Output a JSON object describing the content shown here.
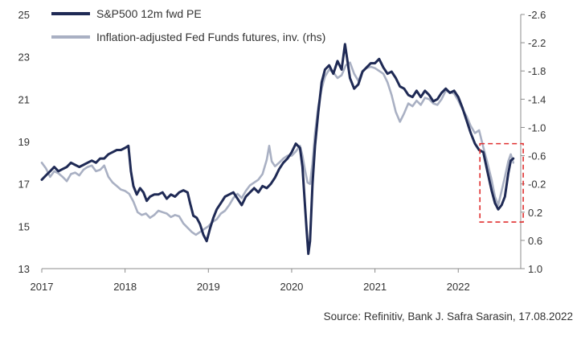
{
  "chart_data": {
    "type": "line",
    "series": [
      {
        "name": "S&P500 12m fwd PE",
        "color": "#1f2a55",
        "axis": "left",
        "points": [
          [
            2017.0,
            17.2
          ],
          [
            2017.05,
            17.4
          ],
          [
            2017.1,
            17.6
          ],
          [
            2017.15,
            17.8
          ],
          [
            2017.2,
            17.6
          ],
          [
            2017.25,
            17.7
          ],
          [
            2017.3,
            17.8
          ],
          [
            2017.35,
            18.0
          ],
          [
            2017.4,
            17.9
          ],
          [
            2017.45,
            17.8
          ],
          [
            2017.5,
            17.9
          ],
          [
            2017.55,
            18.0
          ],
          [
            2017.6,
            18.1
          ],
          [
            2017.65,
            18.0
          ],
          [
            2017.7,
            18.2
          ],
          [
            2017.75,
            18.2
          ],
          [
            2017.8,
            18.4
          ],
          [
            2017.85,
            18.5
          ],
          [
            2017.9,
            18.6
          ],
          [
            2017.95,
            18.6
          ],
          [
            2018.0,
            18.7
          ],
          [
            2018.04,
            18.8
          ],
          [
            2018.07,
            17.6
          ],
          [
            2018.1,
            16.9
          ],
          [
            2018.14,
            16.5
          ],
          [
            2018.18,
            16.8
          ],
          [
            2018.22,
            16.6
          ],
          [
            2018.26,
            16.2
          ],
          [
            2018.3,
            16.4
          ],
          [
            2018.35,
            16.5
          ],
          [
            2018.4,
            16.5
          ],
          [
            2018.45,
            16.6
          ],
          [
            2018.5,
            16.3
          ],
          [
            2018.55,
            16.5
          ],
          [
            2018.6,
            16.4
          ],
          [
            2018.65,
            16.6
          ],
          [
            2018.7,
            16.7
          ],
          [
            2018.75,
            16.6
          ],
          [
            2018.78,
            16.1
          ],
          [
            2018.82,
            15.5
          ],
          [
            2018.86,
            15.4
          ],
          [
            2018.9,
            15.1
          ],
          [
            2018.94,
            14.6
          ],
          [
            2018.98,
            14.3
          ],
          [
            2019.02,
            14.9
          ],
          [
            2019.06,
            15.4
          ],
          [
            2019.1,
            15.8
          ],
          [
            2019.15,
            16.1
          ],
          [
            2019.2,
            16.4
          ],
          [
            2019.25,
            16.5
          ],
          [
            2019.3,
            16.6
          ],
          [
            2019.35,
            16.3
          ],
          [
            2019.4,
            16.0
          ],
          [
            2019.45,
            16.4
          ],
          [
            2019.5,
            16.6
          ],
          [
            2019.55,
            16.8
          ],
          [
            2019.6,
            16.6
          ],
          [
            2019.65,
            16.9
          ],
          [
            2019.7,
            16.8
          ],
          [
            2019.75,
            17.0
          ],
          [
            2019.8,
            17.3
          ],
          [
            2019.85,
            17.7
          ],
          [
            2019.9,
            18.0
          ],
          [
            2019.95,
            18.2
          ],
          [
            2020.0,
            18.5
          ],
          [
            2020.05,
            18.9
          ],
          [
            2020.1,
            18.7
          ],
          [
            2020.13,
            17.8
          ],
          [
            2020.16,
            16.0
          ],
          [
            2020.18,
            14.8
          ],
          [
            2020.2,
            13.7
          ],
          [
            2020.22,
            14.3
          ],
          [
            2020.25,
            17.0
          ],
          [
            2020.28,
            18.8
          ],
          [
            2020.32,
            20.4
          ],
          [
            2020.36,
            21.8
          ],
          [
            2020.4,
            22.4
          ],
          [
            2020.45,
            22.6
          ],
          [
            2020.5,
            22.2
          ],
          [
            2020.55,
            22.8
          ],
          [
            2020.6,
            22.4
          ],
          [
            2020.64,
            23.6
          ],
          [
            2020.67,
            22.8
          ],
          [
            2020.7,
            22.0
          ],
          [
            2020.75,
            21.5
          ],
          [
            2020.8,
            21.7
          ],
          [
            2020.85,
            22.3
          ],
          [
            2020.9,
            22.5
          ],
          [
            2020.95,
            22.7
          ],
          [
            2021.0,
            22.7
          ],
          [
            2021.05,
            22.9
          ],
          [
            2021.1,
            22.5
          ],
          [
            2021.15,
            22.2
          ],
          [
            2021.2,
            22.3
          ],
          [
            2021.25,
            22.0
          ],
          [
            2021.3,
            21.6
          ],
          [
            2021.35,
            21.5
          ],
          [
            2021.4,
            21.2
          ],
          [
            2021.45,
            21.1
          ],
          [
            2021.5,
            21.4
          ],
          [
            2021.55,
            21.1
          ],
          [
            2021.6,
            21.4
          ],
          [
            2021.65,
            21.2
          ],
          [
            2021.7,
            20.9
          ],
          [
            2021.75,
            21.0
          ],
          [
            2021.8,
            21.3
          ],
          [
            2021.85,
            21.5
          ],
          [
            2021.9,
            21.3
          ],
          [
            2021.95,
            21.4
          ],
          [
            2022.0,
            21.1
          ],
          [
            2022.05,
            20.6
          ],
          [
            2022.1,
            20.0
          ],
          [
            2022.15,
            19.4
          ],
          [
            2022.2,
            18.9
          ],
          [
            2022.25,
            18.6
          ],
          [
            2022.3,
            18.5
          ],
          [
            2022.35,
            17.6
          ],
          [
            2022.4,
            16.7
          ],
          [
            2022.44,
            16.1
          ],
          [
            2022.48,
            15.8
          ],
          [
            2022.52,
            16.0
          ],
          [
            2022.56,
            16.4
          ],
          [
            2022.6,
            17.5
          ],
          [
            2022.63,
            18.1
          ],
          [
            2022.66,
            18.2
          ]
        ]
      },
      {
        "name": "Inflation-adjusted Fed Funds futures, inv. (rhs)",
        "color": "#a9b0c3",
        "axis": "right",
        "points": [
          [
            2017.0,
            -0.5
          ],
          [
            2017.05,
            -0.42
          ],
          [
            2017.1,
            -0.3
          ],
          [
            2017.15,
            -0.38
          ],
          [
            2017.2,
            -0.35
          ],
          [
            2017.25,
            -0.3
          ],
          [
            2017.3,
            -0.24
          ],
          [
            2017.35,
            -0.34
          ],
          [
            2017.4,
            -0.36
          ],
          [
            2017.45,
            -0.32
          ],
          [
            2017.5,
            -0.4
          ],
          [
            2017.55,
            -0.44
          ],
          [
            2017.6,
            -0.46
          ],
          [
            2017.65,
            -0.38
          ],
          [
            2017.7,
            -0.4
          ],
          [
            2017.75,
            -0.46
          ],
          [
            2017.8,
            -0.3
          ],
          [
            2017.85,
            -0.22
          ],
          [
            2017.9,
            -0.17
          ],
          [
            2017.95,
            -0.12
          ],
          [
            2018.0,
            -0.1
          ],
          [
            2018.05,
            -0.06
          ],
          [
            2018.1,
            0.05
          ],
          [
            2018.15,
            0.2
          ],
          [
            2018.2,
            0.24
          ],
          [
            2018.25,
            0.22
          ],
          [
            2018.3,
            0.28
          ],
          [
            2018.35,
            0.24
          ],
          [
            2018.4,
            0.18
          ],
          [
            2018.45,
            0.2
          ],
          [
            2018.5,
            0.22
          ],
          [
            2018.55,
            0.27
          ],
          [
            2018.6,
            0.24
          ],
          [
            2018.65,
            0.26
          ],
          [
            2018.7,
            0.36
          ],
          [
            2018.75,
            0.42
          ],
          [
            2018.8,
            0.48
          ],
          [
            2018.85,
            0.52
          ],
          [
            2018.9,
            0.48
          ],
          [
            2018.95,
            0.44
          ],
          [
            2019.0,
            0.4
          ],
          [
            2019.05,
            0.34
          ],
          [
            2019.1,
            0.3
          ],
          [
            2019.15,
            0.22
          ],
          [
            2019.2,
            0.18
          ],
          [
            2019.25,
            0.1
          ],
          [
            2019.3,
            0.0
          ],
          [
            2019.35,
            -0.06
          ],
          [
            2019.4,
            0.0
          ],
          [
            2019.45,
            -0.1
          ],
          [
            2019.5,
            -0.18
          ],
          [
            2019.55,
            -0.22
          ],
          [
            2019.6,
            -0.26
          ],
          [
            2019.65,
            -0.34
          ],
          [
            2019.7,
            -0.54
          ],
          [
            2019.73,
            -0.74
          ],
          [
            2019.76,
            -0.52
          ],
          [
            2019.8,
            -0.45
          ],
          [
            2019.85,
            -0.5
          ],
          [
            2019.9,
            -0.56
          ],
          [
            2019.95,
            -0.6
          ],
          [
            2020.0,
            -0.6
          ],
          [
            2020.05,
            -0.66
          ],
          [
            2020.1,
            -0.74
          ],
          [
            2020.13,
            -0.6
          ],
          [
            2020.16,
            -0.4
          ],
          [
            2020.19,
            -0.22
          ],
          [
            2020.22,
            -0.2
          ],
          [
            2020.25,
            -0.5
          ],
          [
            2020.28,
            -0.92
          ],
          [
            2020.32,
            -1.3
          ],
          [
            2020.36,
            -1.55
          ],
          [
            2020.4,
            -1.72
          ],
          [
            2020.45,
            -1.82
          ],
          [
            2020.5,
            -1.78
          ],
          [
            2020.55,
            -1.7
          ],
          [
            2020.6,
            -1.74
          ],
          [
            2020.65,
            -1.88
          ],
          [
            2020.7,
            -1.92
          ],
          [
            2020.75,
            -1.76
          ],
          [
            2020.8,
            -1.66
          ],
          [
            2020.85,
            -1.8
          ],
          [
            2020.9,
            -1.84
          ],
          [
            2020.95,
            -1.86
          ],
          [
            2021.0,
            -1.84
          ],
          [
            2021.05,
            -1.8
          ],
          [
            2021.1,
            -1.76
          ],
          [
            2021.15,
            -1.64
          ],
          [
            2021.2,
            -1.46
          ],
          [
            2021.25,
            -1.22
          ],
          [
            2021.3,
            -1.08
          ],
          [
            2021.35,
            -1.2
          ],
          [
            2021.4,
            -1.34
          ],
          [
            2021.45,
            -1.3
          ],
          [
            2021.5,
            -1.38
          ],
          [
            2021.55,
            -1.32
          ],
          [
            2021.6,
            -1.42
          ],
          [
            2021.65,
            -1.4
          ],
          [
            2021.7,
            -1.34
          ],
          [
            2021.75,
            -1.32
          ],
          [
            2021.8,
            -1.4
          ],
          [
            2021.85,
            -1.52
          ],
          [
            2021.9,
            -1.5
          ],
          [
            2021.95,
            -1.48
          ],
          [
            2022.0,
            -1.38
          ],
          [
            2022.05,
            -1.26
          ],
          [
            2022.1,
            -1.16
          ],
          [
            2022.15,
            -1.02
          ],
          [
            2022.2,
            -0.92
          ],
          [
            2022.25,
            -0.96
          ],
          [
            2022.3,
            -0.72
          ],
          [
            2022.35,
            -0.5
          ],
          [
            2022.4,
            -0.26
          ],
          [
            2022.44,
            -0.02
          ],
          [
            2022.48,
            0.1
          ],
          [
            2022.52,
            -0.1
          ],
          [
            2022.56,
            -0.3
          ],
          [
            2022.6,
            -0.52
          ],
          [
            2022.63,
            -0.62
          ],
          [
            2022.66,
            -0.5
          ]
        ]
      }
    ],
    "xlim": [
      2017,
      2022.75
    ],
    "x_ticks": [
      2017,
      2018,
      2019,
      2020,
      2021,
      2022
    ],
    "ylim_left": [
      13,
      25
    ],
    "y_ticks_left": [
      13,
      15,
      17,
      19,
      21,
      23,
      25
    ],
    "ylim_right_inverted": [
      1.0,
      -2.6
    ],
    "y_ticks_right": [
      -2.6,
      -2.2,
      -1.8,
      -1.4,
      -1.0,
      -0.6,
      -0.2,
      0.2,
      0.6,
      1.0
    ],
    "y_tick_labels_right": [
      "-2.6",
      "-2.2",
      "-1.8",
      "-1.4",
      "-1.0",
      "-0.6",
      "-0.2",
      "0.2",
      "0.6",
      "1.0"
    ],
    "highlight_box": {
      "x_range": [
        2022.26,
        2022.78
      ],
      "y_range_left": [
        15.2,
        18.9
      ],
      "color": "#e03030",
      "style": "dashed"
    },
    "grid": false,
    "legend_position": "top-left",
    "source": "Source: Refinitiv, Bank J. Safra Sarasin, 17.08.2022"
  }
}
